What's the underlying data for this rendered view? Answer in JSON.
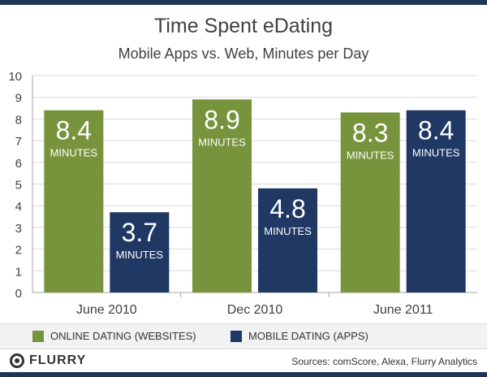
{
  "chart_data": {
    "type": "bar",
    "title": "Time Spent eDating",
    "subtitle": "Mobile Apps vs. Web, Minutes per Day",
    "categories": [
      "June 2010",
      "Dec 2010",
      "June 2011"
    ],
    "series": [
      {
        "name": "ONLINE DATING (WEBSITES)",
        "values": [
          8.4,
          8.9,
          8.3
        ],
        "color": "#77933c"
      },
      {
        "name": "MOBILE DATING (APPS)",
        "values": [
          3.7,
          4.8,
          8.4
        ],
        "color": "#1f3864"
      }
    ],
    "value_labels": [
      [
        "8.4",
        "8.9",
        "8.3"
      ],
      [
        "3.7",
        "4.8",
        "8.4"
      ]
    ],
    "unit_label": "MINUTES",
    "yticks": [
      "0",
      "1",
      "2",
      "3",
      "4",
      "5",
      "6",
      "7",
      "8",
      "9",
      "10"
    ],
    "ylim": [
      0,
      10
    ],
    "grid": true,
    "legend": "bottom",
    "xlabel": "",
    "ylabel": ""
  },
  "footer": {
    "logo_text": "FLURRY",
    "logo_icon": "flurry-logo-icon",
    "sources": "Sources: comScore, Alexa, Flurry Analytics"
  },
  "colors": {
    "frame": "#1f3556",
    "text": "#404040",
    "grid": "#d9d9d9"
  }
}
